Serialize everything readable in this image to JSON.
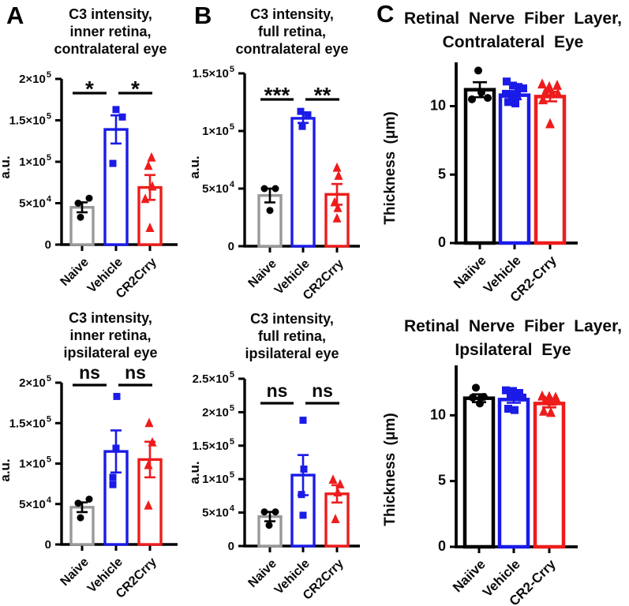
{
  "figure": {
    "background": "#ffffff",
    "panel_labels": [
      "A",
      "B",
      "C"
    ],
    "markers": [
      "circle",
      "square",
      "triangle"
    ],
    "colors": {
      "gray": "#999999",
      "blue": "#1b1be8",
      "red": "#ee1c1c",
      "black": "#000000"
    }
  },
  "chart_data": [
    {
      "id": "a-top",
      "panel": "A",
      "type": "bar",
      "title_lines": [
        "C3 intensity,",
        "inner retina,",
        "contralateral eye"
      ],
      "ylabel": "a.u.",
      "categories": [
        "Naive",
        "Vehicle",
        "CR2Crry"
      ],
      "ylim": [
        0,
        200000
      ],
      "yticks": [
        {
          "v": 0,
          "label": "0"
        },
        {
          "v": 50000,
          "label": "5×10",
          "sup": "4"
        },
        {
          "v": 100000,
          "label": "1×10",
          "sup": "5"
        },
        {
          "v": 150000,
          "label": "1.5×10",
          "sup": "5"
        },
        {
          "v": 200000,
          "label": "2×10",
          "sup": "5"
        }
      ],
      "bar_colors": [
        "#999999",
        "#1b1be8",
        "#ee1c1c"
      ],
      "point_colors": [
        "#000000",
        "#1b1be8",
        "#ee1c1c"
      ],
      "bars": {
        "values": [
          45000,
          139000,
          69000
        ],
        "errors": [
          6000,
          17000,
          15000
        ]
      },
      "points": [
        [
          [
            -5,
            50000
          ],
          [
            9,
            56000
          ],
          [
            -2,
            33000
          ]
        ],
        [
          [
            0,
            163000
          ],
          [
            8,
            154000
          ],
          [
            -4,
            98000
          ]
        ],
        [
          [
            2,
            105000
          ],
          [
            -2,
            95000
          ],
          [
            3,
            70000
          ],
          [
            -6,
            55000
          ],
          [
            0,
            20000
          ]
        ]
      ],
      "significance": [
        {
          "from": 0,
          "to": 1,
          "label": "*"
        },
        {
          "from": 1,
          "to": 2,
          "label": "*"
        }
      ]
    },
    {
      "id": "b-top",
      "panel": "B",
      "type": "bar",
      "title_lines": [
        "C3 intensity,",
        "full retina,",
        "contralateral eye"
      ],
      "ylabel": "a.u.",
      "categories": [
        "Naive",
        "Vehicle",
        "CR2Crry"
      ],
      "ylim": [
        0,
        150000
      ],
      "yticks": [
        {
          "v": 0,
          "label": "0"
        },
        {
          "v": 50000,
          "label": "5×10",
          "sup": "4"
        },
        {
          "v": 100000,
          "label": "1×10",
          "sup": "5"
        },
        {
          "v": 150000,
          "label": "1.5×10",
          "sup": "5"
        }
      ],
      "bar_colors": [
        "#999999",
        "#1b1be8",
        "#ee1c1c"
      ],
      "point_colors": [
        "#000000",
        "#1b1be8",
        "#ee1c1c"
      ],
      "bars": {
        "values": [
          44000,
          111000,
          45000
        ],
        "errors": [
          6000,
          4000,
          9000
        ]
      },
      "points": [
        [
          [
            -7,
            50000
          ],
          [
            7,
            50000
          ],
          [
            0,
            31000
          ]
        ],
        [
          [
            -3,
            117000
          ],
          [
            6,
            114000
          ],
          [
            -1,
            104000
          ]
        ],
        [
          [
            0,
            68000
          ],
          [
            2,
            61000
          ],
          [
            -3,
            38000
          ],
          [
            1,
            33000
          ],
          [
            0,
            24000
          ]
        ]
      ],
      "significance": [
        {
          "from": 0,
          "to": 1,
          "label": "***"
        },
        {
          "from": 1,
          "to": 2,
          "label": "**"
        }
      ]
    },
    {
      "id": "c-top",
      "panel": "C",
      "type": "bar",
      "title_lines": [
        "Retinal Nerve Fiber Layer,",
        "Contralateral Eye"
      ],
      "ylabel": "Thickness (μm)",
      "categories": [
        "Naiive",
        "Vehicle",
        "CR2-Crry"
      ],
      "ylim": [
        0,
        13.2
      ],
      "yticks": [
        {
          "v": 0,
          "label": "0"
        },
        {
          "v": 5,
          "label": "5"
        },
        {
          "v": 10,
          "label": "10"
        }
      ],
      "bar_colors": [
        "#000000",
        "#1b1be8",
        "#ee1c1c"
      ],
      "point_colors": [
        "#000000",
        "#1b1be8",
        "#ee1c1c"
      ],
      "bars": {
        "values": [
          11.2,
          10.8,
          10.7
        ],
        "errors": [
          0.55,
          0.3,
          0.35
        ]
      },
      "points": [
        [
          [
            -2,
            12.6
          ],
          [
            2,
            11.0
          ],
          [
            -10,
            10.5
          ],
          [
            10,
            10.6
          ]
        ],
        [
          [
            -10,
            11.8
          ],
          [
            -2,
            11.5
          ],
          [
            5,
            11.4
          ],
          [
            11,
            11.3
          ],
          [
            -11,
            10.9
          ],
          [
            -3,
            10.85
          ],
          [
            3,
            10.8
          ],
          [
            -8,
            10.3
          ],
          [
            1,
            10.2
          ]
        ],
        [
          [
            -10,
            11.6
          ],
          [
            -1,
            11.4
          ],
          [
            9,
            11.5
          ],
          [
            -6,
            11.0
          ],
          [
            3,
            10.9
          ],
          [
            10,
            10.9
          ],
          [
            -9,
            10.45
          ],
          [
            0,
            8.7
          ]
        ]
      ]
    },
    {
      "id": "a-bot",
      "panel": "A",
      "type": "bar",
      "title_lines": [
        "C3 intensity,",
        "inner retina,",
        "ipsilateral eye"
      ],
      "ylabel": "a.u.",
      "categories": [
        "Naive",
        "Vehicle",
        "CR2Crry"
      ],
      "ylim": [
        0,
        200000
      ],
      "yticks": [
        {
          "v": 0,
          "label": "0"
        },
        {
          "v": 50000,
          "label": "5×10",
          "sup": "4"
        },
        {
          "v": 100000,
          "label": "1×10",
          "sup": "5"
        },
        {
          "v": 150000,
          "label": "1.5×10",
          "sup": "5"
        },
        {
          "v": 200000,
          "label": "2×10",
          "sup": "5"
        }
      ],
      "bar_colors": [
        "#999999",
        "#1b1be8",
        "#ee1c1c"
      ],
      "point_colors": [
        "#000000",
        "#1b1be8",
        "#ee1c1c"
      ],
      "bars": {
        "values": [
          46000,
          115000,
          105000
        ],
        "errors": [
          6000,
          26000,
          22000
        ]
      },
      "points": [
        [
          [
            -5,
            51000
          ],
          [
            9,
            56000
          ],
          [
            -2,
            33000
          ]
        ],
        [
          [
            1,
            183000
          ],
          [
            0,
            119000
          ],
          [
            -4,
            83000
          ],
          [
            -4,
            74000
          ]
        ],
        [
          [
            -1,
            150000
          ],
          [
            3,
            126000
          ],
          [
            -2,
            98000
          ],
          [
            -2,
            48000
          ]
        ]
      ],
      "significance": [
        {
          "from": 0,
          "to": 1,
          "label": "ns"
        },
        {
          "from": 1,
          "to": 2,
          "label": "ns"
        }
      ]
    },
    {
      "id": "b-bot",
      "panel": "B",
      "type": "bar",
      "title_lines": [
        "C3 intensity,",
        "full retina,",
        "ipsilateral eye"
      ],
      "ylabel": "a.u.",
      "categories": [
        "Naive",
        "Vehicle",
        "CR2Crry"
      ],
      "ylim": [
        0,
        250000
      ],
      "yticks": [
        {
          "v": 0,
          "label": "0"
        },
        {
          "v": 50000,
          "label": "5×10",
          "sup": "4"
        },
        {
          "v": 100000,
          "label": "1×10",
          "sup": "5"
        },
        {
          "v": 150000,
          "label": "1.5×10",
          "sup": "5"
        },
        {
          "v": 200000,
          "label": "2×10",
          "sup": "5"
        },
        {
          "v": 250000,
          "label": "2.5×10",
          "sup": "5"
        }
      ],
      "bar_colors": [
        "#999999",
        "#1b1be8",
        "#ee1c1c"
      ],
      "point_colors": [
        "#000000",
        "#1b1be8",
        "#ee1c1c"
      ],
      "bars": {
        "values": [
          44000,
          106000,
          78000
        ],
        "errors": [
          7000,
          30000,
          13000
        ]
      },
      "points": [
        [
          [
            -7,
            51000
          ],
          [
            7,
            51000
          ],
          [
            -1,
            31000
          ]
        ],
        [
          [
            0,
            188000
          ],
          [
            1,
            115000
          ],
          [
            -2,
            77000
          ],
          [
            0,
            46000
          ]
        ],
        [
          [
            -5,
            99000
          ],
          [
            4,
            92000
          ],
          [
            1,
            80000
          ],
          [
            -2,
            40000
          ]
        ]
      ],
      "significance": [
        {
          "from": 0,
          "to": 1,
          "label": "ns"
        },
        {
          "from": 1,
          "to": 2,
          "label": "ns"
        }
      ]
    },
    {
      "id": "c-bot",
      "panel": "C",
      "type": "bar",
      "title_lines": [
        "Retinal Nerve Fiber Layer,",
        "Ipsilateral Eye"
      ],
      "ylabel": "Thickness (μm)",
      "categories": [
        "Naiive",
        "Vehicle",
        "CR2-Crry"
      ],
      "ylim": [
        0,
        13.8
      ],
      "yticks": [
        {
          "v": 0,
          "label": "0"
        },
        {
          "v": 5,
          "label": "5"
        },
        {
          "v": 10,
          "label": "10"
        }
      ],
      "bar_colors": [
        "#000000",
        "#1b1be8",
        "#ee1c1c"
      ],
      "point_colors": [
        "#000000",
        "#1b1be8",
        "#ee1c1c"
      ],
      "bars": {
        "values": [
          11.3,
          11.2,
          10.9
        ],
        "errors": [
          0.3,
          0.25,
          0.3
        ]
      },
      "points": [
        [
          [
            -4,
            12.1
          ],
          [
            6,
            11.4
          ],
          [
            -8,
            11.35
          ],
          [
            1,
            10.9
          ]
        ],
        [
          [
            -10,
            11.9
          ],
          [
            -1,
            11.85
          ],
          [
            7,
            11.7
          ],
          [
            -4,
            11.5
          ],
          [
            4,
            11.45
          ],
          [
            11,
            11.35
          ],
          [
            -7,
            10.5
          ],
          [
            1,
            10.4
          ]
        ],
        [
          [
            -9,
            11.45
          ],
          [
            0,
            11.4
          ],
          [
            8,
            11.35
          ],
          [
            -5,
            11.1
          ],
          [
            3,
            11.05
          ],
          [
            10,
            11.1
          ],
          [
            -7,
            10.3
          ],
          [
            2,
            10.2
          ]
        ]
      ]
    }
  ]
}
